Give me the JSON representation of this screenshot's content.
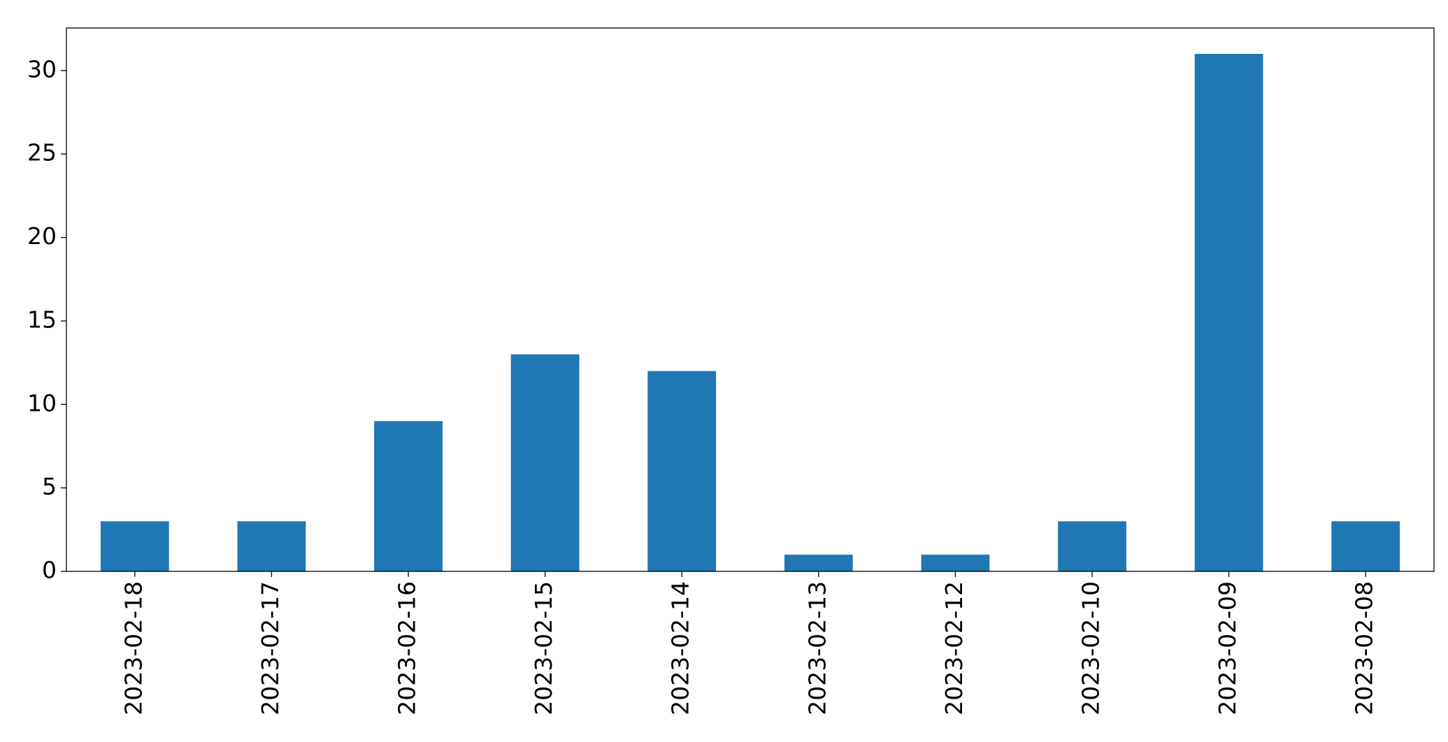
{
  "chart_data": {
    "type": "bar",
    "categories": [
      "2023-02-18",
      "2023-02-17",
      "2023-02-16",
      "2023-02-15",
      "2023-02-14",
      "2023-02-13",
      "2023-02-12",
      "2023-02-10",
      "2023-02-09",
      "2023-02-08"
    ],
    "values": [
      3,
      3,
      9,
      13,
      12,
      1,
      1,
      3,
      31,
      3
    ],
    "color": "#1f77b4",
    "ylim": [
      0,
      32.55
    ],
    "yticks": [
      0,
      5,
      10,
      15,
      20,
      25,
      30
    ],
    "grid": false
  }
}
